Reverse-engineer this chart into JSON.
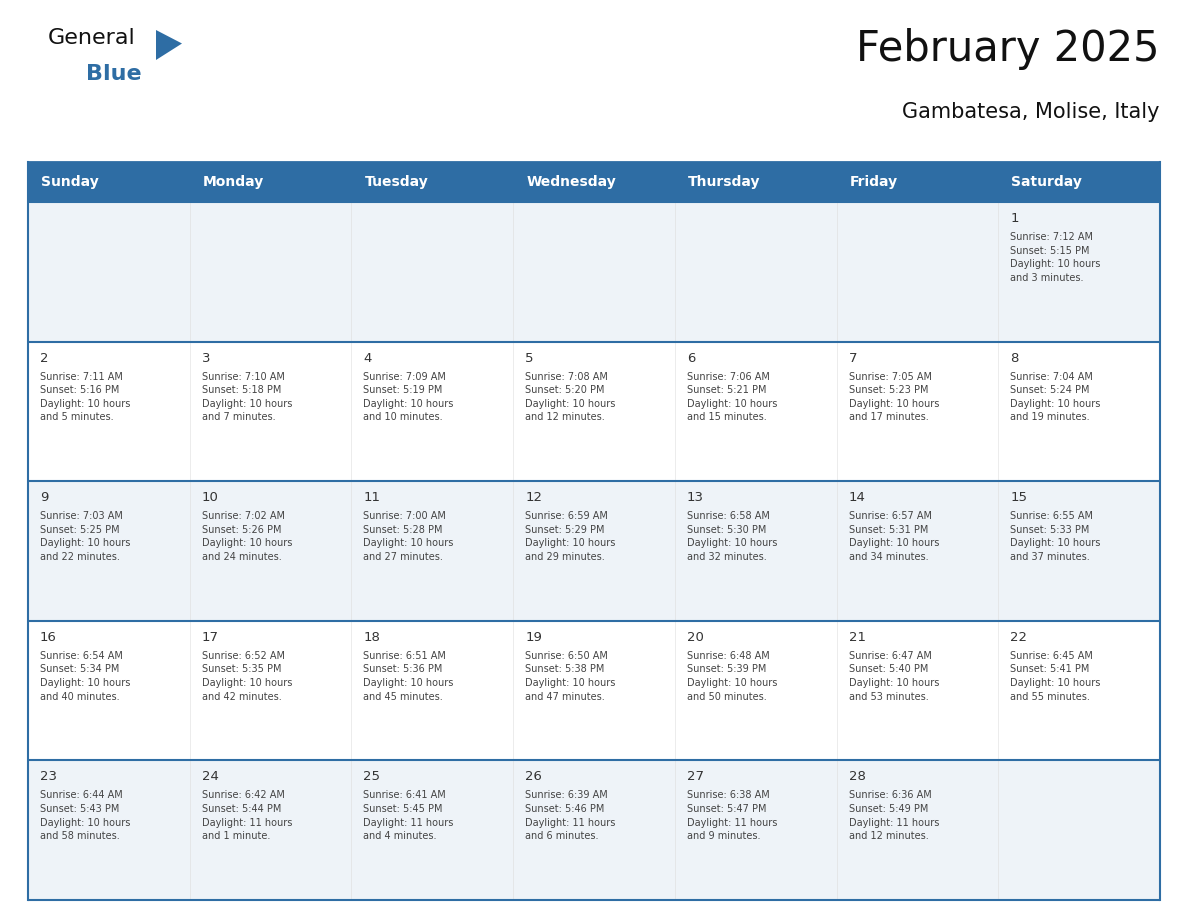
{
  "title": "February 2025",
  "subtitle": "Gambatesa, Molise, Italy",
  "header_bg": "#2E6DA4",
  "header_text_color": "#FFFFFF",
  "row_bg_odd": "#EEF3F8",
  "row_bg_even": "#FFFFFF",
  "row_line_color": "#2E6DA4",
  "day_number_color": "#333333",
  "cell_text_color": "#444444",
  "weekdays": [
    "Sunday",
    "Monday",
    "Tuesday",
    "Wednesday",
    "Thursday",
    "Friday",
    "Saturday"
  ],
  "calendar": [
    [
      {
        "day": "",
        "text": ""
      },
      {
        "day": "",
        "text": ""
      },
      {
        "day": "",
        "text": ""
      },
      {
        "day": "",
        "text": ""
      },
      {
        "day": "",
        "text": ""
      },
      {
        "day": "",
        "text": ""
      },
      {
        "day": "1",
        "text": "Sunrise: 7:12 AM\nSunset: 5:15 PM\nDaylight: 10 hours\nand 3 minutes."
      }
    ],
    [
      {
        "day": "2",
        "text": "Sunrise: 7:11 AM\nSunset: 5:16 PM\nDaylight: 10 hours\nand 5 minutes."
      },
      {
        "day": "3",
        "text": "Sunrise: 7:10 AM\nSunset: 5:18 PM\nDaylight: 10 hours\nand 7 minutes."
      },
      {
        "day": "4",
        "text": "Sunrise: 7:09 AM\nSunset: 5:19 PM\nDaylight: 10 hours\nand 10 minutes."
      },
      {
        "day": "5",
        "text": "Sunrise: 7:08 AM\nSunset: 5:20 PM\nDaylight: 10 hours\nand 12 minutes."
      },
      {
        "day": "6",
        "text": "Sunrise: 7:06 AM\nSunset: 5:21 PM\nDaylight: 10 hours\nand 15 minutes."
      },
      {
        "day": "7",
        "text": "Sunrise: 7:05 AM\nSunset: 5:23 PM\nDaylight: 10 hours\nand 17 minutes."
      },
      {
        "day": "8",
        "text": "Sunrise: 7:04 AM\nSunset: 5:24 PM\nDaylight: 10 hours\nand 19 minutes."
      }
    ],
    [
      {
        "day": "9",
        "text": "Sunrise: 7:03 AM\nSunset: 5:25 PM\nDaylight: 10 hours\nand 22 minutes."
      },
      {
        "day": "10",
        "text": "Sunrise: 7:02 AM\nSunset: 5:26 PM\nDaylight: 10 hours\nand 24 minutes."
      },
      {
        "day": "11",
        "text": "Sunrise: 7:00 AM\nSunset: 5:28 PM\nDaylight: 10 hours\nand 27 minutes."
      },
      {
        "day": "12",
        "text": "Sunrise: 6:59 AM\nSunset: 5:29 PM\nDaylight: 10 hours\nand 29 minutes."
      },
      {
        "day": "13",
        "text": "Sunrise: 6:58 AM\nSunset: 5:30 PM\nDaylight: 10 hours\nand 32 minutes."
      },
      {
        "day": "14",
        "text": "Sunrise: 6:57 AM\nSunset: 5:31 PM\nDaylight: 10 hours\nand 34 minutes."
      },
      {
        "day": "15",
        "text": "Sunrise: 6:55 AM\nSunset: 5:33 PM\nDaylight: 10 hours\nand 37 minutes."
      }
    ],
    [
      {
        "day": "16",
        "text": "Sunrise: 6:54 AM\nSunset: 5:34 PM\nDaylight: 10 hours\nand 40 minutes."
      },
      {
        "day": "17",
        "text": "Sunrise: 6:52 AM\nSunset: 5:35 PM\nDaylight: 10 hours\nand 42 minutes."
      },
      {
        "day": "18",
        "text": "Sunrise: 6:51 AM\nSunset: 5:36 PM\nDaylight: 10 hours\nand 45 minutes."
      },
      {
        "day": "19",
        "text": "Sunrise: 6:50 AM\nSunset: 5:38 PM\nDaylight: 10 hours\nand 47 minutes."
      },
      {
        "day": "20",
        "text": "Sunrise: 6:48 AM\nSunset: 5:39 PM\nDaylight: 10 hours\nand 50 minutes."
      },
      {
        "day": "21",
        "text": "Sunrise: 6:47 AM\nSunset: 5:40 PM\nDaylight: 10 hours\nand 53 minutes."
      },
      {
        "day": "22",
        "text": "Sunrise: 6:45 AM\nSunset: 5:41 PM\nDaylight: 10 hours\nand 55 minutes."
      }
    ],
    [
      {
        "day": "23",
        "text": "Sunrise: 6:44 AM\nSunset: 5:43 PM\nDaylight: 10 hours\nand 58 minutes."
      },
      {
        "day": "24",
        "text": "Sunrise: 6:42 AM\nSunset: 5:44 PM\nDaylight: 11 hours\nand 1 minute."
      },
      {
        "day": "25",
        "text": "Sunrise: 6:41 AM\nSunset: 5:45 PM\nDaylight: 11 hours\nand 4 minutes."
      },
      {
        "day": "26",
        "text": "Sunrise: 6:39 AM\nSunset: 5:46 PM\nDaylight: 11 hours\nand 6 minutes."
      },
      {
        "day": "27",
        "text": "Sunrise: 6:38 AM\nSunset: 5:47 PM\nDaylight: 11 hours\nand 9 minutes."
      },
      {
        "day": "28",
        "text": "Sunrise: 6:36 AM\nSunset: 5:49 PM\nDaylight: 11 hours\nand 12 minutes."
      },
      {
        "day": "",
        "text": ""
      }
    ]
  ],
  "logo_text_general": "General",
  "logo_text_blue": "Blue",
  "logo_general_color": "#111111",
  "logo_blue_color": "#2E6DA4",
  "logo_triangle_color": "#2E6DA4",
  "title_color": "#111111",
  "subtitle_color": "#111111"
}
